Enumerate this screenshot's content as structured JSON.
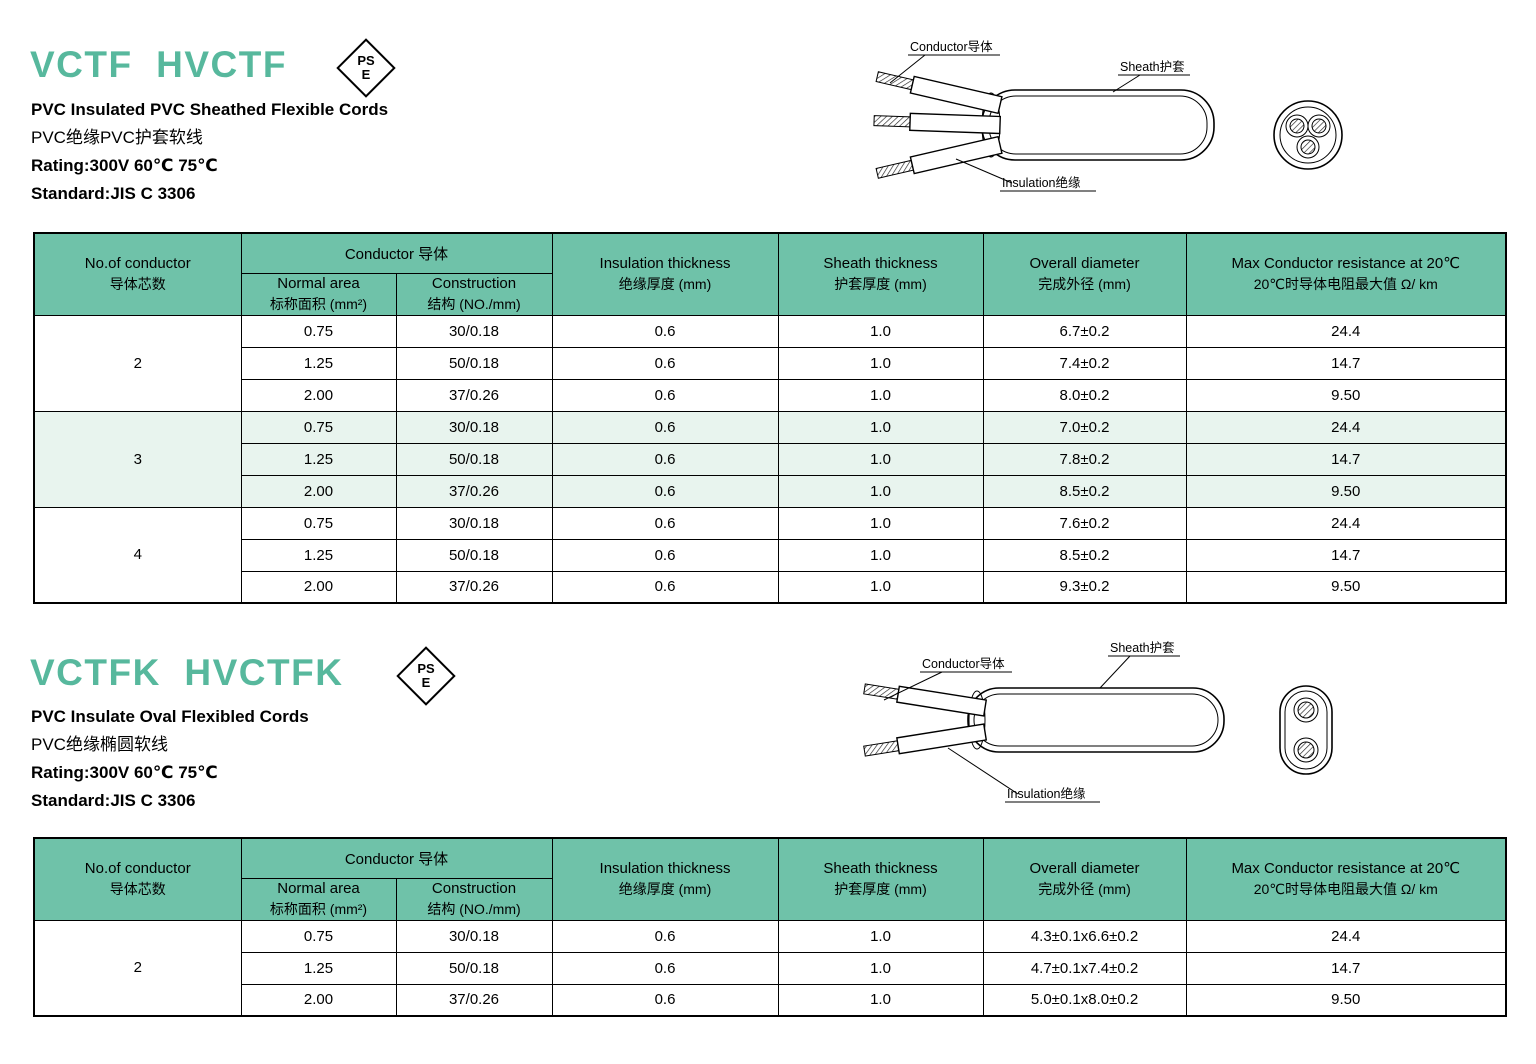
{
  "colors": {
    "accent": "#57b89d",
    "table_header_bg": "#6fc2a9",
    "shaded_row_bg": "#e8f4ee",
    "border": "#000000"
  },
  "pse": {
    "line1": "PS",
    "line2": "E"
  },
  "table_header": {
    "no_of_conductor_en": "No.of conductor",
    "no_of_conductor_cn": "导体芯数",
    "conductor_group": "Conductor 导体",
    "normal_area_en": "Normal area",
    "normal_area_cn": "标称面积 (mm²)",
    "construction_en": "Construction",
    "construction_cn": "结构 (NO./mm)",
    "insulation_en": "Insulation thickness",
    "insulation_cn": "绝缘厚度 (mm)",
    "sheath_en": "Sheath thickness",
    "sheath_cn": "护套厚度 (mm)",
    "diameter_en": "Overall diameter",
    "diameter_cn": "完成外径 (mm)",
    "resistance_en": "Max Conductor resistance at 20℃",
    "resistance_cn": "20℃时导体电阻最大值 Ω/ km"
  },
  "section1": {
    "title": "VCTF  HVCTF",
    "subtitle_en": "PVC Insulated PVC Sheathed Flexible Cords",
    "subtitle_cn": "PVC绝缘PVC护套软线",
    "rating": "Rating:300V 60℃ 75℃",
    "standard": "Standard:JIS C 3306",
    "diagram": {
      "conductor": "Conductor导体",
      "sheath": "Sheath护套",
      "insulation": "Insulation绝缘"
    }
  },
  "section2": {
    "title": "VCTFK  HVCTFK",
    "subtitle_en": "PVC Insulate Oval Flexibled Cords",
    "subtitle_cn": "PVC绝缘椭圆软线",
    "rating": "Rating:300V 60℃ 75℃",
    "standard": "Standard:JIS C 3306",
    "diagram": {
      "conductor": "Conductor导体",
      "sheath": "Sheath护套",
      "insulation": "Insulation绝缘"
    }
  },
  "table1": {
    "groups": [
      {
        "count": "2",
        "shaded": false,
        "rows": [
          [
            "0.75",
            "30/0.18",
            "0.6",
            "1.0",
            "6.7±0.2",
            "24.4"
          ],
          [
            "1.25",
            "50/0.18",
            "0.6",
            "1.0",
            "7.4±0.2",
            "14.7"
          ],
          [
            "2.00",
            "37/0.26",
            "0.6",
            "1.0",
            "8.0±0.2",
            "9.50"
          ]
        ]
      },
      {
        "count": "3",
        "shaded": true,
        "rows": [
          [
            "0.75",
            "30/0.18",
            "0.6",
            "1.0",
            "7.0±0.2",
            "24.4"
          ],
          [
            "1.25",
            "50/0.18",
            "0.6",
            "1.0",
            "7.8±0.2",
            "14.7"
          ],
          [
            "2.00",
            "37/0.26",
            "0.6",
            "1.0",
            "8.5±0.2",
            "9.50"
          ]
        ]
      },
      {
        "count": "4",
        "shaded": false,
        "rows": [
          [
            "0.75",
            "30/0.18",
            "0.6",
            "1.0",
            "7.6±0.2",
            "24.4"
          ],
          [
            "1.25",
            "50/0.18",
            "0.6",
            "1.0",
            "8.5±0.2",
            "14.7"
          ],
          [
            "2.00",
            "37/0.26",
            "0.6",
            "1.0",
            "9.3±0.2",
            "9.50"
          ]
        ]
      }
    ]
  },
  "table2": {
    "groups": [
      {
        "count": "2",
        "shaded": false,
        "rows": [
          [
            "0.75",
            "30/0.18",
            "0.6",
            "1.0",
            "4.3±0.1x6.6±0.2",
            "24.4"
          ],
          [
            "1.25",
            "50/0.18",
            "0.6",
            "1.0",
            "4.7±0.1x7.4±0.2",
            "14.7"
          ],
          [
            "2.00",
            "37/0.26",
            "0.6",
            "1.0",
            "5.0±0.1x8.0±0.2",
            "9.50"
          ]
        ]
      }
    ]
  }
}
